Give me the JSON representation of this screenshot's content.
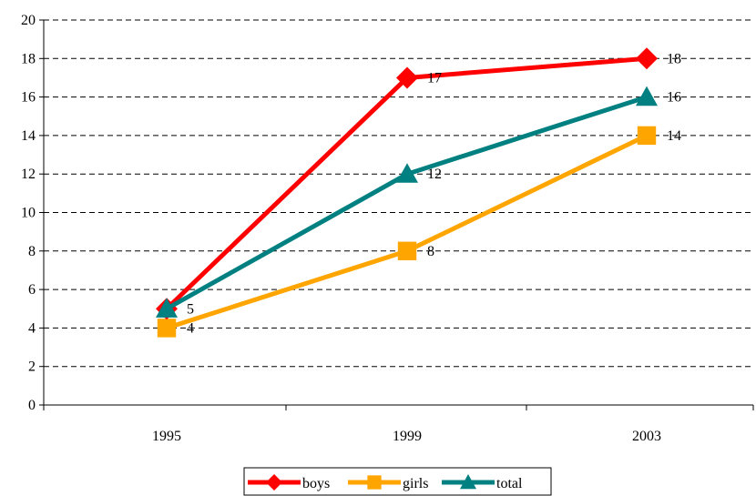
{
  "chart_data": {
    "type": "line",
    "categories": [
      "1995",
      "1999",
      "2003"
    ],
    "series": [
      {
        "name": "boys",
        "values": [
          5,
          17,
          18
        ],
        "color": "#ff0000",
        "marker": "diamond",
        "labels": [
          "",
          "17",
          "18"
        ]
      },
      {
        "name": "girls",
        "values": [
          4,
          8,
          14
        ],
        "color": "#ffa500",
        "marker": "square",
        "labels": [
          "4",
          "8",
          "14"
        ]
      },
      {
        "name": "total",
        "values": [
          5,
          12,
          16
        ],
        "color": "#008080",
        "marker": "triangle",
        "labels": [
          "5",
          "12",
          "16"
        ]
      }
    ],
    "title": "",
    "xlabel": "",
    "ylabel": "",
    "ylim": [
      0,
      20
    ],
    "yticks": [
      "0",
      "2",
      "4",
      "6",
      "8",
      "10",
      "12",
      "14",
      "16",
      "18",
      "20"
    ],
    "grid": "dashed horizontal",
    "legend_position": "bottom"
  }
}
